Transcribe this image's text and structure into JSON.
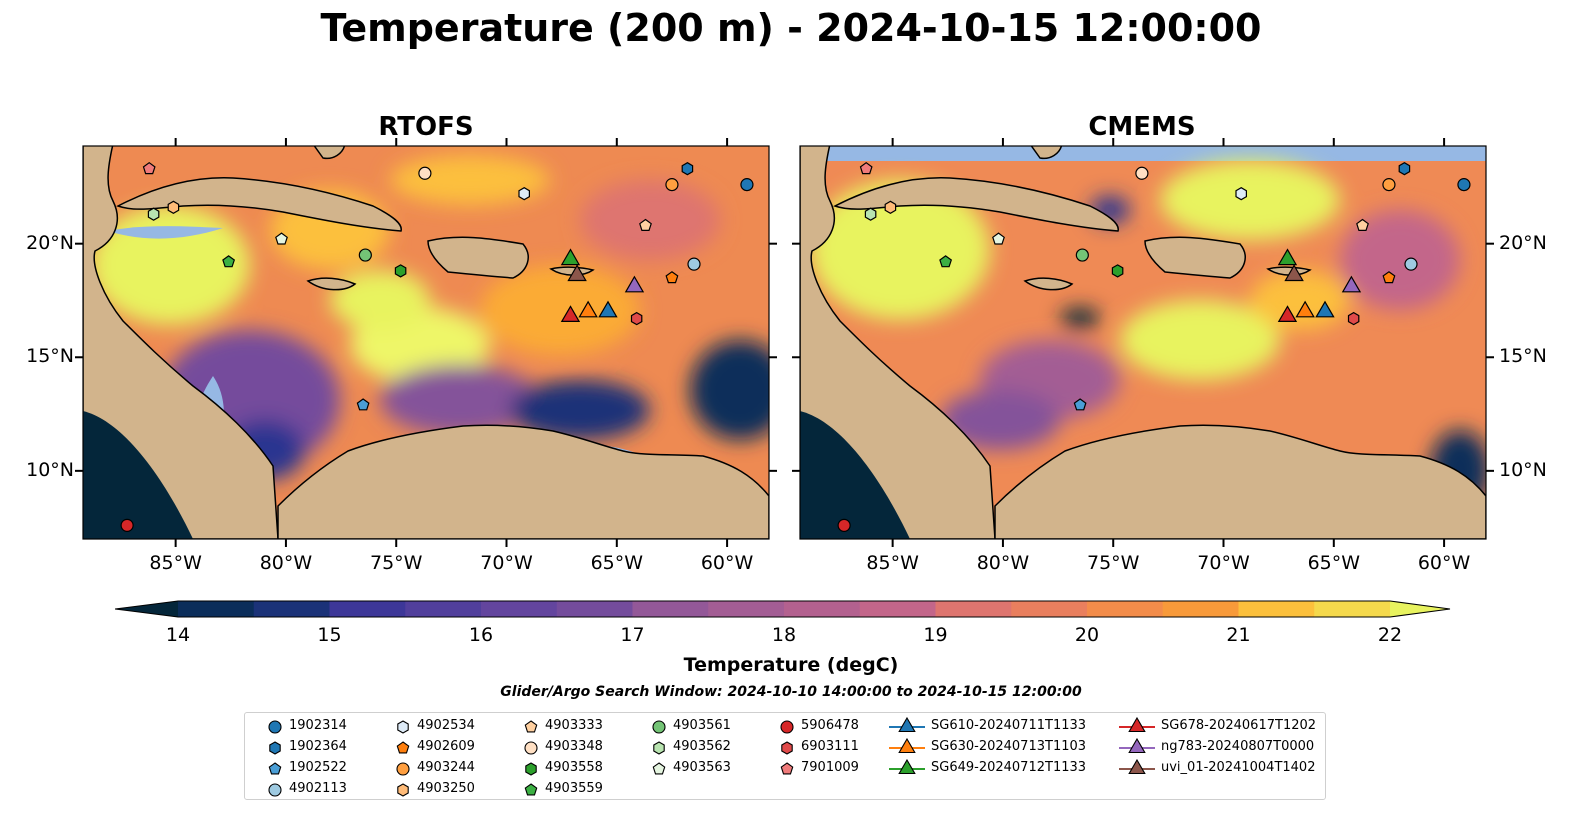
{
  "title": "Temperature (200 m) - 2024-10-15 12:00:00",
  "panels": [
    {
      "title": "RTOFS"
    },
    {
      "title": "CMEMS"
    }
  ],
  "axes": {
    "lon_ticks": [
      "85°W",
      "80°W",
      "75°W",
      "70°W",
      "65°W",
      "60°W"
    ],
    "lat_ticks": [
      "20°N",
      "15°N",
      "10°N"
    ],
    "lon_range": [
      -89.2,
      -58.1
    ],
    "lat_range": [
      7.0,
      24.3
    ]
  },
  "colorbar": {
    "label": "Temperature (degC)",
    "ticks": [
      "14",
      "15",
      "16",
      "17",
      "18",
      "19",
      "20",
      "21",
      "22"
    ],
    "range": [
      14,
      22
    ],
    "extend": "both",
    "colormap": "thermal",
    "colors": [
      "#04263a",
      "#0b2d5a",
      "#1b3278",
      "#2b3490",
      "#3d3798",
      "#513f9c",
      "#63459e",
      "#744c9c",
      "#84539a",
      "#935898",
      "#a35d94",
      "#b3618f",
      "#c3668a",
      "#d16d7d",
      "#de756f",
      "#e97f5e",
      "#f38c4a",
      "#f89a3a",
      "#fbab34",
      "#fcc03c",
      "#f5d94c",
      "#e8f35f"
    ]
  },
  "map_colors": {
    "land": "#d2b48c",
    "shallow": "#96b8e4",
    "coast": "#000000",
    "river": "#9ab0d0"
  },
  "search_window": "Glider/Argo Search Window: 2024-10-10 14:00:00 to 2024-10-15 12:00:00",
  "legend": [
    {
      "label": "1902314",
      "marker": "circle",
      "color": "#1f77b4"
    },
    {
      "label": "1902364",
      "marker": "hexagon",
      "color": "#1f77b4"
    },
    {
      "label": "1902522",
      "marker": "pentagon",
      "color": "#4a9ed6"
    },
    {
      "label": "4902113",
      "marker": "circle",
      "color": "#9ecae1"
    },
    {
      "label": "4902534",
      "marker": "hexagon",
      "color": "#deebf7"
    },
    {
      "label": "4902609",
      "marker": "pentagon",
      "color": "#ff7f0e"
    },
    {
      "label": "4903244",
      "marker": "circle",
      "color": "#ff9f40"
    },
    {
      "label": "4903250",
      "marker": "hexagon",
      "color": "#ffbb78"
    },
    {
      "label": "4903333",
      "marker": "pentagon",
      "color": "#ffd0a0"
    },
    {
      "label": "4903348",
      "marker": "circle",
      "color": "#ffe0c4"
    },
    {
      "label": "4903558",
      "marker": "hexagon",
      "color": "#2ca02c"
    },
    {
      "label": "4903559",
      "marker": "pentagon",
      "color": "#3cb043"
    },
    {
      "label": "4903561",
      "marker": "circle",
      "color": "#74c476"
    },
    {
      "label": "4903562",
      "marker": "hexagon",
      "color": "#b8e4b0"
    },
    {
      "label": "4903563",
      "marker": "pentagon",
      "color": "#e5f5e0"
    },
    {
      "label": "5906478",
      "marker": "circle",
      "color": "#d62728"
    },
    {
      "label": "6903111",
      "marker": "hexagon",
      "color": "#e04a4a"
    },
    {
      "label": "7901009",
      "marker": "pentagon",
      "color": "#f07b7b"
    },
    {
      "label": "SG610-20240711T1133",
      "marker": "triangle",
      "color": "#1f77b4"
    },
    {
      "label": "SG630-20240713T1103",
      "marker": "triangle",
      "color": "#ff7f0e"
    },
    {
      "label": "SG649-20240712T1133",
      "marker": "triangle",
      "color": "#2ca02c"
    },
    {
      "label": "SG678-20240617T1202",
      "marker": "triangle",
      "color": "#d62728"
    },
    {
      "label": "ng783-20240807T0000",
      "marker": "triangle",
      "color": "#9467bd"
    },
    {
      "label": "uvi_01-20241004T1402",
      "marker": "triangle",
      "color": "#8c564b"
    }
  ],
  "observations": [
    {
      "id": "1902314",
      "lon": -59.1,
      "lat": 22.6
    },
    {
      "id": "1902364",
      "lon": -61.8,
      "lat": 23.3
    },
    {
      "id": "1902522",
      "lon": -76.5,
      "lat": 12.9
    },
    {
      "id": "4902113",
      "lon": -61.5,
      "lat": 19.1
    },
    {
      "id": "4902534",
      "lon": -69.2,
      "lat": 22.2
    },
    {
      "id": "4902609",
      "lon": -62.5,
      "lat": 18.5
    },
    {
      "id": "4903244",
      "lon": -62.5,
      "lat": 22.6
    },
    {
      "id": "4903250",
      "lon": -85.1,
      "lat": 21.6
    },
    {
      "id": "4903333",
      "lon": -63.7,
      "lat": 20.8
    },
    {
      "id": "4903348",
      "lon": -73.7,
      "lat": 23.1
    },
    {
      "id": "4903558",
      "lon": -74.8,
      "lat": 18.8
    },
    {
      "id": "4903559",
      "lon": -82.6,
      "lat": 19.2
    },
    {
      "id": "4903561",
      "lon": -76.4,
      "lat": 19.5
    },
    {
      "id": "4903562",
      "lon": -86.0,
      "lat": 21.3
    },
    {
      "id": "4903563",
      "lon": -80.2,
      "lat": 20.2
    },
    {
      "id": "5906478",
      "lon": -87.2,
      "lat": 7.6
    },
    {
      "id": "6903111",
      "lon": -64.1,
      "lat": 16.7
    },
    {
      "id": "7901009",
      "lon": -86.2,
      "lat": 23.3
    },
    {
      "id": "SG610-20240711T1133",
      "lon": -65.4,
      "lat": 17.0
    },
    {
      "id": "SG630-20240713T1103",
      "lon": -66.3,
      "lat": 17.0
    },
    {
      "id": "SG649-20240712T1133",
      "lon": -67.1,
      "lat": 19.3
    },
    {
      "id": "SG678-20240617T1202",
      "lon": -67.1,
      "lat": 16.8
    },
    {
      "id": "ng783-20240807T0000",
      "lon": -64.2,
      "lat": 18.1
    },
    {
      "id": "uvi_01-20241004T1402",
      "lon": -66.8,
      "lat": 18.6
    }
  ]
}
